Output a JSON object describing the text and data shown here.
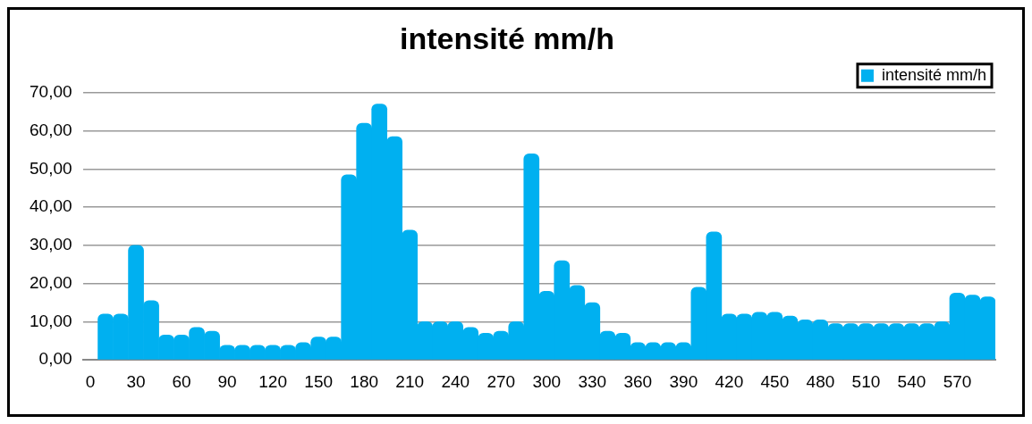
{
  "chart_data": {
    "type": "bar",
    "title": "intensité mm/h",
    "categories": [
      "0",
      null,
      null,
      "30",
      null,
      null,
      "60",
      null,
      null,
      "90",
      null,
      null,
      "120",
      null,
      null,
      "150",
      null,
      null,
      "180",
      null,
      null,
      "210",
      null,
      null,
      "240",
      null,
      null,
      "270",
      null,
      null,
      "300",
      null,
      null,
      "330",
      null,
      null,
      "360",
      null,
      null,
      "390",
      null,
      null,
      "420",
      null,
      null,
      "450",
      null,
      null,
      "480",
      null,
      null,
      "510",
      null,
      null,
      "540",
      null,
      null,
      "570",
      null,
      null
    ],
    "series": [
      {
        "name": "intensité mm/h",
        "color": "#00b0f0",
        "values": [
          null,
          12,
          12,
          30,
          15.5,
          6.5,
          6.5,
          8.5,
          7.5,
          3.8,
          3.8,
          3.8,
          3.8,
          3.8,
          4.5,
          6,
          6,
          48.5,
          62,
          67,
          58.5,
          34,
          10,
          10,
          10,
          8.5,
          7,
          7.5,
          10,
          54,
          18,
          26,
          19.5,
          15,
          7.5,
          7,
          4.5,
          4.5,
          4.5,
          4.5,
          19,
          33.5,
          12,
          12,
          12.5,
          12.5,
          11.5,
          10.5,
          10.5,
          9.5,
          9.5,
          9.5,
          9.5,
          9.5,
          9.5,
          9.5,
          10,
          17.5,
          17,
          16.5
        ]
      }
    ],
    "ylim": [
      0,
      70
    ],
    "yticks": [
      {
        "value": 0,
        "label": "0,00"
      },
      {
        "value": 10,
        "label": "10,00"
      },
      {
        "value": 20,
        "label": "20,00"
      },
      {
        "value": 30,
        "label": "30,00"
      },
      {
        "value": 40,
        "label": "40,00"
      },
      {
        "value": 50,
        "label": "50,00"
      },
      {
        "value": 60,
        "label": "60,00"
      },
      {
        "value": 70,
        "label": "70,00"
      }
    ],
    "grid": "y",
    "legend": "top right"
  }
}
